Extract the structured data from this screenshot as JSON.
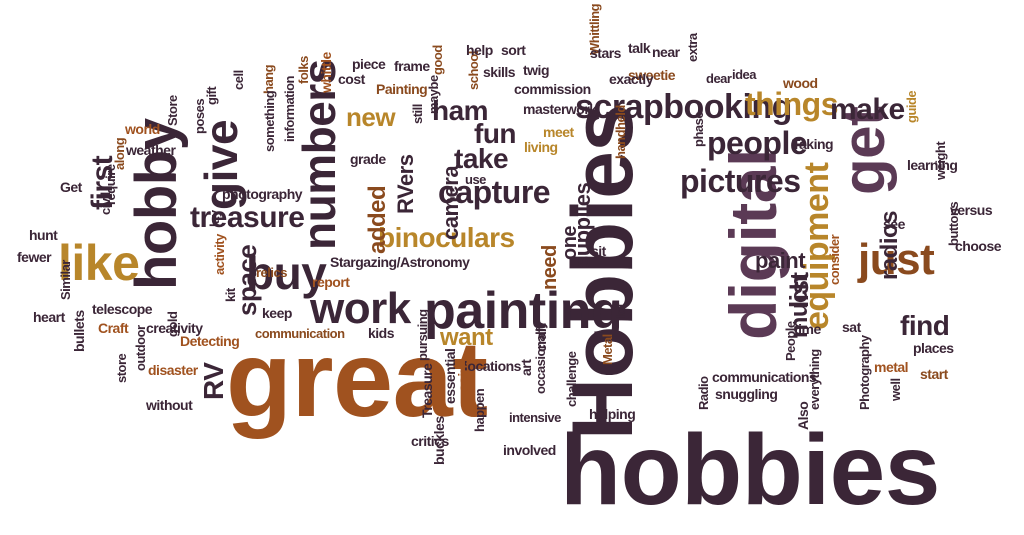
{
  "words": [
    {
      "id": "hobbies-vertical",
      "text": "Hobbies",
      "tone": "c1"
    },
    {
      "id": "hobbies",
      "text": "hobbies",
      "tone": "c1"
    },
    {
      "id": "great",
      "text": "great",
      "tone": "c3"
    },
    {
      "id": "digital",
      "text": "digital",
      "tone": "c2"
    },
    {
      "id": "hobby",
      "text": "hobby",
      "tone": "c1"
    },
    {
      "id": "get",
      "text": "get",
      "tone": "c2"
    },
    {
      "id": "painting",
      "text": "painting",
      "tone": "c1"
    },
    {
      "id": "numbers",
      "text": "numbers",
      "tone": "c1"
    },
    {
      "id": "equipment",
      "text": "equipment",
      "tone": "c4"
    },
    {
      "id": "just",
      "text": "just",
      "tone": "c6"
    },
    {
      "id": "like",
      "text": "like",
      "tone": "c4"
    },
    {
      "id": "give",
      "text": "give",
      "tone": "c1"
    },
    {
      "id": "buy",
      "text": "buy",
      "tone": "c1"
    },
    {
      "id": "work",
      "text": "work",
      "tone": "c1"
    },
    {
      "id": "scrapbooking",
      "text": "scrapbooking",
      "tone": "c1"
    },
    {
      "id": "things",
      "text": "things",
      "tone": "c4"
    },
    {
      "id": "make",
      "text": "make",
      "tone": "c1"
    },
    {
      "id": "pictures",
      "text": "pictures",
      "tone": "c1"
    },
    {
      "id": "people",
      "text": "people",
      "tone": "c1"
    },
    {
      "id": "capture",
      "text": "capture",
      "tone": "c1"
    },
    {
      "id": "treasure",
      "text": "treasure",
      "tone": "c1"
    },
    {
      "id": "binoculars",
      "text": "binoculars",
      "tone": "c4"
    },
    {
      "id": "space",
      "text": "space",
      "tone": "c1"
    },
    {
      "id": "first",
      "text": "first",
      "tone": "c1"
    },
    {
      "id": "new",
      "text": "new",
      "tone": "c4"
    },
    {
      "id": "ham",
      "text": "ham",
      "tone": "c1"
    },
    {
      "id": "fun",
      "text": "fun",
      "tone": "c1"
    },
    {
      "id": "take",
      "text": "take",
      "tone": "c1"
    },
    {
      "id": "find",
      "text": "find",
      "tone": "c1"
    },
    {
      "id": "radios",
      "text": "radios",
      "tone": "c1"
    },
    {
      "id": "list",
      "text": "list",
      "tone": "c1"
    },
    {
      "id": "much",
      "text": "much",
      "tone": "c1"
    },
    {
      "id": "paint",
      "text": "paint",
      "tone": "c1"
    },
    {
      "id": "want",
      "text": "want",
      "tone": "c4"
    },
    {
      "id": "supplies",
      "text": "supplies",
      "tone": "c1"
    },
    {
      "id": "camera",
      "text": "camera",
      "tone": "c1"
    },
    {
      "id": "added",
      "text": "added",
      "tone": "c6"
    },
    {
      "id": "rv",
      "text": "RV",
      "tone": "c1"
    },
    {
      "id": "rvers",
      "text": "RVers",
      "tone": "c1"
    },
    {
      "id": "need",
      "text": "need",
      "tone": "c6"
    },
    {
      "id": "one",
      "text": "one",
      "tone": "c1"
    },
    {
      "id": "stargazing",
      "text": "Stargazing/Astronomy",
      "tone": "c1"
    },
    {
      "id": "communications",
      "text": "communications",
      "tone": "c1"
    },
    {
      "id": "communication",
      "text": "communication",
      "tone": "c6"
    },
    {
      "id": "metal",
      "text": "metal",
      "tone": "c3"
    },
    {
      "id": "metal-cap",
      "text": "Metal",
      "tone": "c6"
    },
    {
      "id": "photography",
      "text": "photography",
      "tone": "c1"
    },
    {
      "id": "photography-cap",
      "text": "Photography",
      "tone": "c1"
    },
    {
      "id": "telescope",
      "text": "telescope",
      "tone": "c1"
    },
    {
      "id": "creativity",
      "text": "creativity",
      "tone": "c1"
    },
    {
      "id": "detecting",
      "text": "Detecting",
      "tone": "c3"
    },
    {
      "id": "disaster",
      "text": "disaster",
      "tone": "c3"
    },
    {
      "id": "craft-cap",
      "text": "Craft",
      "tone": "c3"
    },
    {
      "id": "craft",
      "text": "craft",
      "tone": "c1"
    },
    {
      "id": "kids",
      "text": "kids",
      "tone": "c1"
    },
    {
      "id": "locations",
      "text": "locations",
      "tone": "c1"
    },
    {
      "id": "snuggling",
      "text": "snuggling",
      "tone": "c1"
    },
    {
      "id": "helping",
      "text": "helping",
      "tone": "c1"
    },
    {
      "id": "involved",
      "text": "involved",
      "tone": "c1"
    },
    {
      "id": "intensive",
      "text": "intensive",
      "tone": "c1"
    },
    {
      "id": "critics",
      "text": "critics",
      "tone": "c1"
    },
    {
      "id": "buckles",
      "text": "buckles",
      "tone": "c1"
    },
    {
      "id": "coins",
      "text": "coins",
      "tone": "c3"
    },
    {
      "id": "essential",
      "text": "essential",
      "tone": "c1"
    },
    {
      "id": "treasure-cap",
      "text": "Treasure",
      "tone": "c1"
    },
    {
      "id": "without",
      "text": "without",
      "tone": "c1"
    },
    {
      "id": "store",
      "text": "store",
      "tone": "c1"
    },
    {
      "id": "outdoor",
      "text": "outdoor",
      "tone": "c1"
    },
    {
      "id": "heart",
      "text": "heart",
      "tone": "c1"
    },
    {
      "id": "bullets",
      "text": "bullets",
      "tone": "c1"
    },
    {
      "id": "similar",
      "text": "Similar",
      "tone": "c1"
    },
    {
      "id": "fewer",
      "text": "fewer",
      "tone": "c1"
    },
    {
      "id": "hunt",
      "text": "hunt",
      "tone": "c1"
    },
    {
      "id": "get-cap",
      "text": "Get",
      "tone": "c1"
    },
    {
      "id": "civil",
      "text": "civil",
      "tone": "c1"
    },
    {
      "id": "require",
      "text": "require",
      "tone": "c1"
    },
    {
      "id": "along",
      "text": "along",
      "tone": "c6"
    },
    {
      "id": "weather",
      "text": "weather",
      "tone": "c1"
    },
    {
      "id": "world",
      "text": "world",
      "tone": "c3"
    },
    {
      "id": "store-cap",
      "text": "Store",
      "tone": "c1"
    },
    {
      "id": "gift",
      "text": "gift",
      "tone": "c1"
    },
    {
      "id": "poses",
      "text": "poses",
      "tone": "c1"
    },
    {
      "id": "cell",
      "text": "cell",
      "tone": "c1"
    },
    {
      "id": "hang",
      "text": "hang",
      "tone": "c6"
    },
    {
      "id": "something",
      "text": "something",
      "tone": "c1"
    },
    {
      "id": "information",
      "text": "information",
      "tone": "c1"
    },
    {
      "id": "folks",
      "text": "folks",
      "tone": "c6"
    },
    {
      "id": "whittle",
      "text": "whittle",
      "tone": "c3"
    },
    {
      "id": "cost",
      "text": "cost",
      "tone": "c1"
    },
    {
      "id": "piece",
      "text": "piece",
      "tone": "c1"
    },
    {
      "id": "frame",
      "text": "frame",
      "tone": "c1"
    },
    {
      "id": "good",
      "text": "good",
      "tone": "c6"
    },
    {
      "id": "painting-cap",
      "text": "Painting",
      "tone": "c6"
    },
    {
      "id": "maybe",
      "text": "maybe",
      "tone": "c1"
    },
    {
      "id": "still",
      "text": "still",
      "tone": "c1"
    },
    {
      "id": "grade",
      "text": "grade",
      "tone": "c1"
    },
    {
      "id": "school",
      "text": "school",
      "tone": "c6"
    },
    {
      "id": "help",
      "text": "help",
      "tone": "c1"
    },
    {
      "id": "sort",
      "text": "sort",
      "tone": "c1"
    },
    {
      "id": "skills",
      "text": "skills",
      "tone": "c1"
    },
    {
      "id": "twig",
      "text": "twig",
      "tone": "c1"
    },
    {
      "id": "whittling",
      "text": "Whittling",
      "tone": "c6"
    },
    {
      "id": "stars",
      "text": "stars",
      "tone": "c1"
    },
    {
      "id": "talk",
      "text": "talk",
      "tone": "c1"
    },
    {
      "id": "near",
      "text": "near",
      "tone": "c1"
    },
    {
      "id": "sweetie",
      "text": "sweetie",
      "tone": "c6"
    },
    {
      "id": "extra",
      "text": "extra",
      "tone": "c1"
    },
    {
      "id": "exactly",
      "text": "exactly",
      "tone": "c1"
    },
    {
      "id": "commission",
      "text": "commission",
      "tone": "c1"
    },
    {
      "id": "masterwork",
      "text": "masterwork",
      "tone": "c1"
    },
    {
      "id": "meet",
      "text": "meet",
      "tone": "c4"
    },
    {
      "id": "use",
      "text": "use",
      "tone": "c1"
    },
    {
      "id": "living",
      "text": "living",
      "tone": "c4"
    },
    {
      "id": "dear",
      "text": "dear",
      "tone": "c1"
    },
    {
      "id": "idea",
      "text": "idea",
      "tone": "c1"
    },
    {
      "id": "wood",
      "text": "wood",
      "tone": "c6"
    },
    {
      "id": "handheld",
      "text": "handheld",
      "tone": "c6"
    },
    {
      "id": "phase",
      "text": "phase",
      "tone": "c1"
    },
    {
      "id": "taking",
      "text": "Taking",
      "tone": "c1"
    },
    {
      "id": "guide",
      "text": "guide",
      "tone": "c4"
    },
    {
      "id": "learning",
      "text": "learning",
      "tone": "c1"
    },
    {
      "id": "weight",
      "text": "weight",
      "tone": "c1"
    },
    {
      "id": "versus",
      "text": "versus",
      "tone": "c1"
    },
    {
      "id": "see",
      "text": "see",
      "tone": "c1"
    },
    {
      "id": "buttons",
      "text": "buttons",
      "tone": "c1"
    },
    {
      "id": "choose",
      "text": "choose",
      "tone": "c1"
    },
    {
      "id": "consider",
      "text": "consider",
      "tone": "c3"
    },
    {
      "id": "sat",
      "text": "sat",
      "tone": "c1"
    },
    {
      "id": "time",
      "text": "time",
      "tone": "c1"
    },
    {
      "id": "people-cap",
      "text": "People",
      "tone": "c1"
    },
    {
      "id": "sit",
      "text": "sit",
      "tone": "c1"
    },
    {
      "id": "lot",
      "text": "lot",
      "tone": "c1"
    },
    {
      "id": "places",
      "text": "places",
      "tone": "c1"
    },
    {
      "id": "start",
      "text": "start",
      "tone": "c6"
    },
    {
      "id": "well",
      "text": "well",
      "tone": "c1"
    },
    {
      "id": "everything",
      "text": "everything",
      "tone": "c1"
    },
    {
      "id": "also",
      "text": "Also",
      "tone": "c1"
    },
    {
      "id": "radio",
      "text": "Radio",
      "tone": "c1"
    },
    {
      "id": "happen",
      "text": "happen",
      "tone": "c1"
    },
    {
      "id": "art",
      "text": "art",
      "tone": "c1"
    },
    {
      "id": "occasionally",
      "text": "occasionally",
      "tone": "c1"
    },
    {
      "id": "challenge",
      "text": "challenge",
      "tone": "c1"
    },
    {
      "id": "pursuing",
      "text": "pursuing",
      "tone": "c1"
    },
    {
      "id": "report",
      "text": "report",
      "tone": "c3"
    },
    {
      "id": "relics",
      "text": "relics",
      "tone": "c6"
    },
    {
      "id": "keep",
      "text": "keep",
      "tone": "c1"
    },
    {
      "id": "activity",
      "text": "activity",
      "tone": "c3"
    },
    {
      "id": "lay",
      "text": "lay",
      "tone": "c1"
    },
    {
      "id": "kit",
      "text": "kit",
      "tone": "c1"
    },
    {
      "id": "gold",
      "text": "gold",
      "tone": "c1"
    }
  ]
}
